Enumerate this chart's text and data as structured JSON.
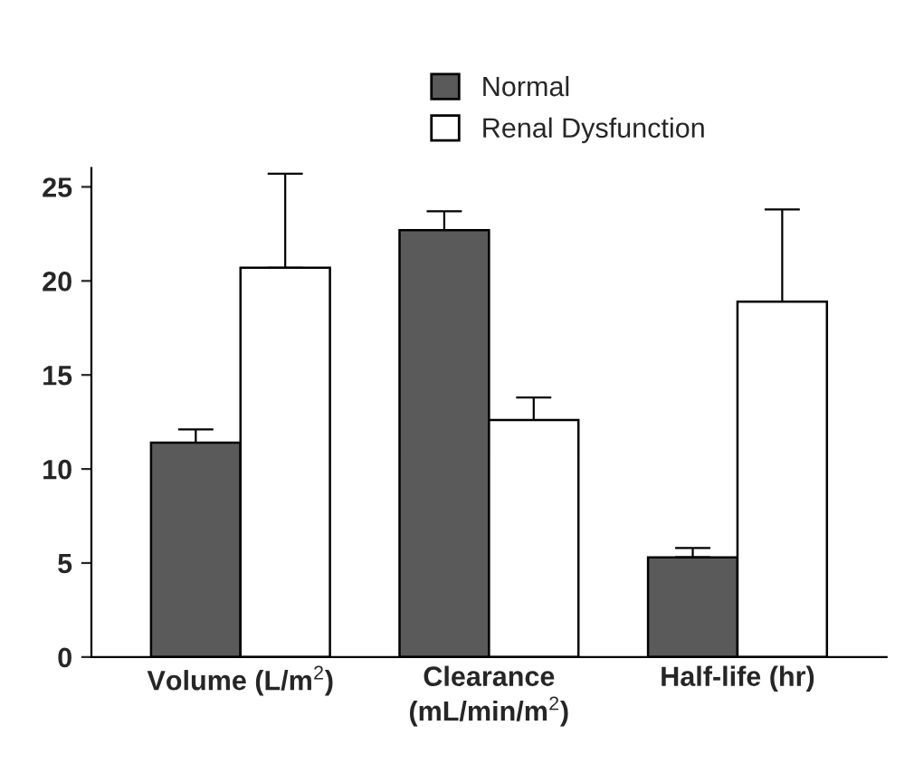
{
  "chart_data": {
    "type": "bar",
    "categories": [
      "Volume (L/m$^{2}$)",
      "Clearance\n(mL/min/m$^{2}$)",
      "Half-life (hr)"
    ],
    "series": [
      {
        "name": "Normal",
        "color": "#5a5a5a",
        "values": [
          11.4,
          22.7,
          5.3
        ],
        "errors": [
          [
            11.4,
            12.1
          ],
          [
            22.7,
            23.7
          ],
          [
            5.3,
            5.8
          ]
        ]
      },
      {
        "name": "Renal Dysfunction",
        "color": "#ffffff",
        "values": [
          20.7,
          12.6,
          18.9
        ],
        "errors": [
          [
            20.7,
            25.7
          ],
          [
            12.6,
            13.8
          ],
          [
            18.9,
            23.8
          ]
        ]
      }
    ],
    "ylim": [
      0,
      26
    ],
    "yticks": [
      0,
      5,
      10,
      15,
      20,
      25
    ],
    "grid": false,
    "legend": "top"
  }
}
